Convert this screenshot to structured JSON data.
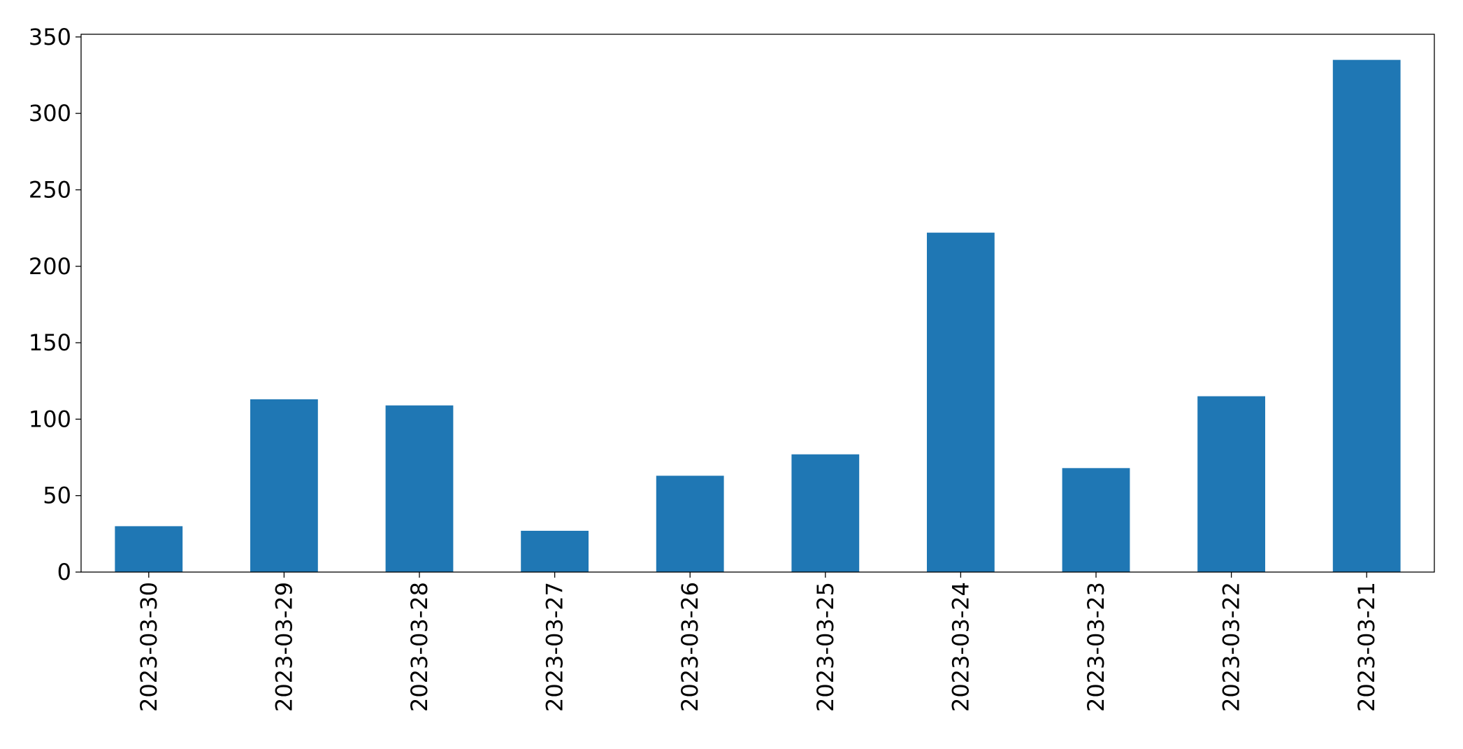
{
  "chart_data": {
    "type": "bar",
    "categories": [
      "2023-03-30",
      "2023-03-29",
      "2023-03-28",
      "2023-03-27",
      "2023-03-26",
      "2023-03-25",
      "2023-03-24",
      "2023-03-23",
      "2023-03-22",
      "2023-03-21"
    ],
    "values": [
      30,
      113,
      109,
      27,
      63,
      77,
      222,
      68,
      115,
      335
    ],
    "color": "#1f77b4",
    "ylim": [
      0,
      351.75
    ],
    "yticks": [
      0,
      50,
      100,
      150,
      200,
      250,
      300,
      350
    ],
    "grid": false
  }
}
